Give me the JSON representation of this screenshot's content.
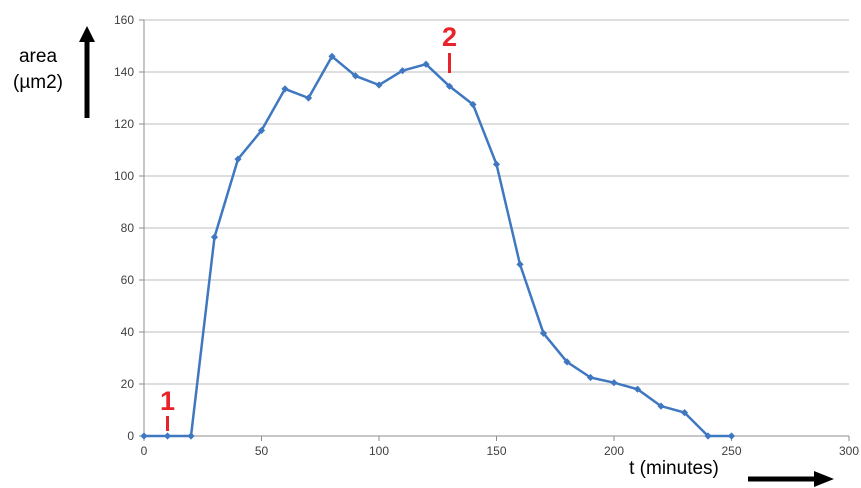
{
  "chart_data": {
    "type": "line",
    "title": "",
    "ylabel_line1": "area",
    "ylabel_line2": "(µm2)",
    "xlabel": "t (minutes)",
    "xlim": [
      0,
      300
    ],
    "ylim": [
      0,
      160
    ],
    "xticks": [
      0,
      50,
      100,
      150,
      200,
      250,
      300
    ],
    "yticks": [
      0,
      20,
      40,
      60,
      80,
      100,
      120,
      140,
      160
    ],
    "grid": "horizontal",
    "series": [
      {
        "x": [
          0,
          10,
          20,
          30,
          40,
          50,
          60,
          70,
          80,
          90,
          100,
          110,
          120,
          130,
          140,
          150,
          160,
          170,
          180,
          190,
          200,
          210,
          220,
          230,
          240,
          250
        ],
        "y": [
          0,
          0,
          0,
          76.5,
          106.5,
          117.5,
          133.5,
          130,
          146,
          138.5,
          135,
          140.5,
          143,
          134.5,
          127.5,
          104.5,
          66,
          39.5,
          28.5,
          22.5,
          20.5,
          18,
          11.5,
          9,
          0,
          0
        ],
        "color": "#3f78c0"
      }
    ],
    "annotations": [
      {
        "text": "1",
        "x": 10,
        "color": "#e8242a"
      },
      {
        "text": "2",
        "x": 130,
        "color": "#e8242a"
      }
    ]
  }
}
